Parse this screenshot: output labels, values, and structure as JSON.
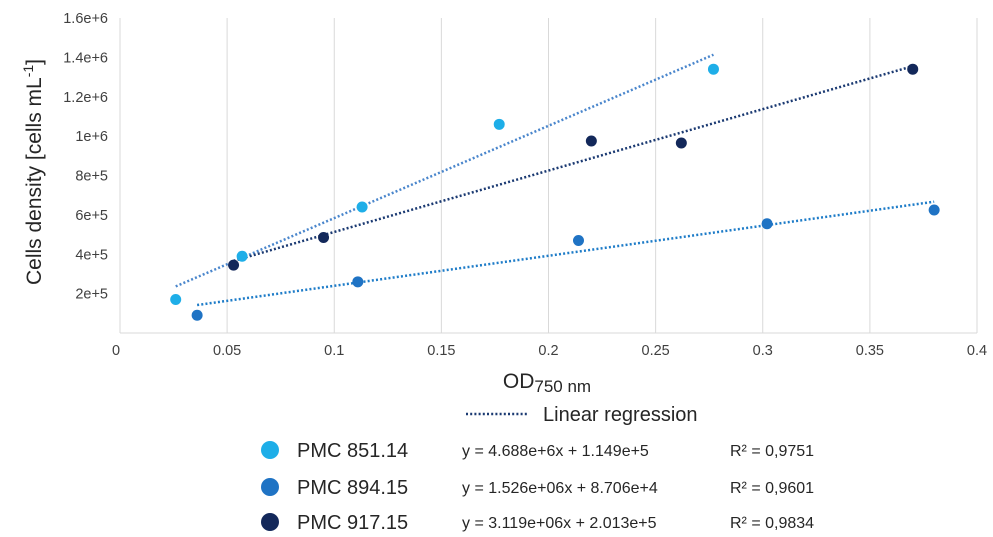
{
  "chart_data": {
    "type": "scatter",
    "xlabel": "OD",
    "xlabel_sub": "750 nm",
    "ylabel": "Cells density [cells mL",
    "ylabel_sup": "-1",
    "ylabel_close": "]",
    "xlim": [
      0,
      0.4
    ],
    "ylim": [
      0,
      1600000
    ],
    "x_ticks": [
      "0",
      "0.05",
      "0.1",
      "0.15",
      "0.2",
      "0.25",
      "0.3",
      "0.35",
      "0.4"
    ],
    "x_tick_values": [
      0,
      0.05,
      0.1,
      0.15,
      0.2,
      0.25,
      0.3,
      0.35,
      0.4
    ],
    "y_ticks": [
      "2e+5",
      "4e+5",
      "6e+5",
      "8e+5",
      "1e+6",
      "1.2e+6",
      "1.4e+6",
      "1.6e+6"
    ],
    "y_tick_values": [
      200000,
      400000,
      600000,
      800000,
      1000000,
      1200000,
      1400000,
      1600000
    ],
    "grid": "vertical",
    "legend_placement": "bottom",
    "regression_label": "Linear regression",
    "series": [
      {
        "name": "PMC 851.14",
        "color": "#1eaee8",
        "line_color": "#4a86cc",
        "equation": "y = 4.688e+6x + 1.149e+5",
        "r2": "R² = 0,9751",
        "slope": 4688000,
        "intercept": 114900,
        "fit_range": [
          0.026,
          0.277
        ],
        "points": [
          [
            0.026,
            170000
          ],
          [
            0.057,
            390000
          ],
          [
            0.113,
            640000
          ],
          [
            0.177,
            1060000
          ],
          [
            0.277,
            1340000
          ]
        ]
      },
      {
        "name": "PMC 894.15",
        "color": "#1f73c4",
        "line_color": "#1e7cc8",
        "equation": "y = 1.526e+06x + 8.706e+4",
        "r2": "R² = 0,9601",
        "slope": 1526000,
        "intercept": 87060,
        "fit_range": [
          0.036,
          0.38
        ],
        "points": [
          [
            0.036,
            90000
          ],
          [
            0.111,
            260000
          ],
          [
            0.214,
            470000
          ],
          [
            0.302,
            555000
          ],
          [
            0.38,
            625000
          ]
        ]
      },
      {
        "name": "PMC 917.15",
        "color": "#13285a",
        "line_color": "#1b3a72",
        "equation": "y = 3.119e+06x + 2.013e+5",
        "r2": "R² = 0,9834",
        "slope": 3119000,
        "intercept": 201300,
        "fit_range": [
          0.053,
          0.37
        ],
        "points": [
          [
            0.053,
            345000
          ],
          [
            0.095,
            485000
          ],
          [
            0.22,
            975000
          ],
          [
            0.262,
            965000
          ],
          [
            0.37,
            1340000
          ]
        ]
      }
    ]
  }
}
